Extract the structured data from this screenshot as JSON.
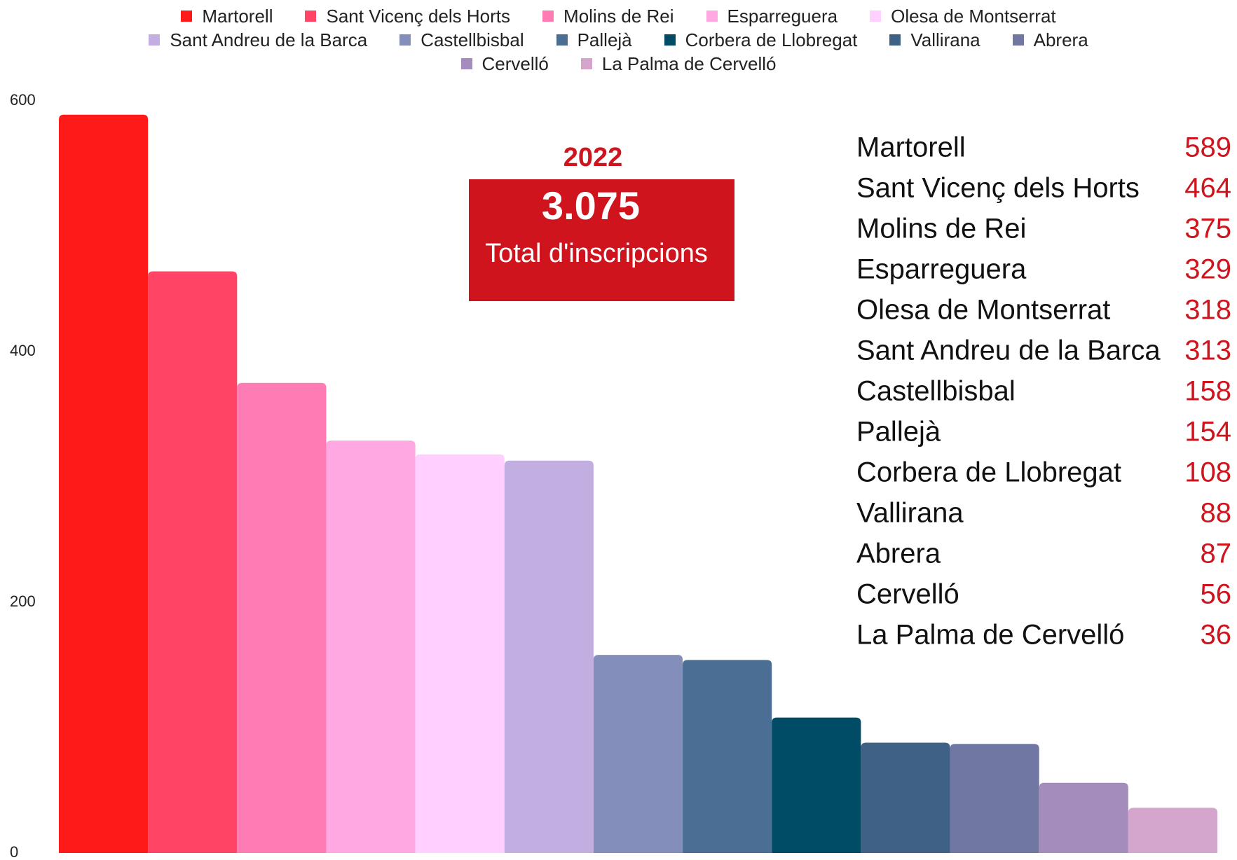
{
  "chart_data": {
    "type": "bar",
    "ylim": [
      0,
      600
    ],
    "yticks": [
      0,
      200,
      400,
      600
    ],
    "series": [
      {
        "name": "Martorell",
        "color": "#ff1a1a",
        "values": [
          589
        ]
      },
      {
        "name": "Sant Vicenç dels Horts",
        "color": "#ff4466",
        "values": [
          464
        ]
      },
      {
        "name": "Molins de Rei",
        "color": "#ff7bb4",
        "values": [
          375
        ]
      },
      {
        "name": "Esparreguera",
        "color": "#ffa8e2",
        "values": [
          329
        ]
      },
      {
        "name": "Olesa de Montserrat",
        "color": "#ffd0ff",
        "values": [
          318
        ]
      },
      {
        "name": "Sant Andreu de la Barca",
        "color": "#c2aee0",
        "values": [
          313
        ]
      },
      {
        "name": "Castellbisbal",
        "color": "#848ebb",
        "values": [
          158
        ]
      },
      {
        "name": "Pallejà",
        "color": "#4a6e94",
        "values": [
          154
        ]
      },
      {
        "name": "Corbera de Llobregat",
        "color": "#004c66",
        "values": [
          108
        ]
      },
      {
        "name": "Vallirana",
        "color": "#3f6185",
        "values": [
          88
        ]
      },
      {
        "name": "Abrera",
        "color": "#7177a3",
        "values": [
          87
        ]
      },
      {
        "name": "Cervelló",
        "color": "#a48dbd",
        "values": [
          56
        ]
      },
      {
        "name": "La Palma de Cervelló",
        "color": "#d4a6cd",
        "values": [
          36
        ]
      }
    ],
    "annotations": {
      "year": "2022",
      "total": "3.075",
      "total_label": "Total d'inscripcions"
    }
  }
}
